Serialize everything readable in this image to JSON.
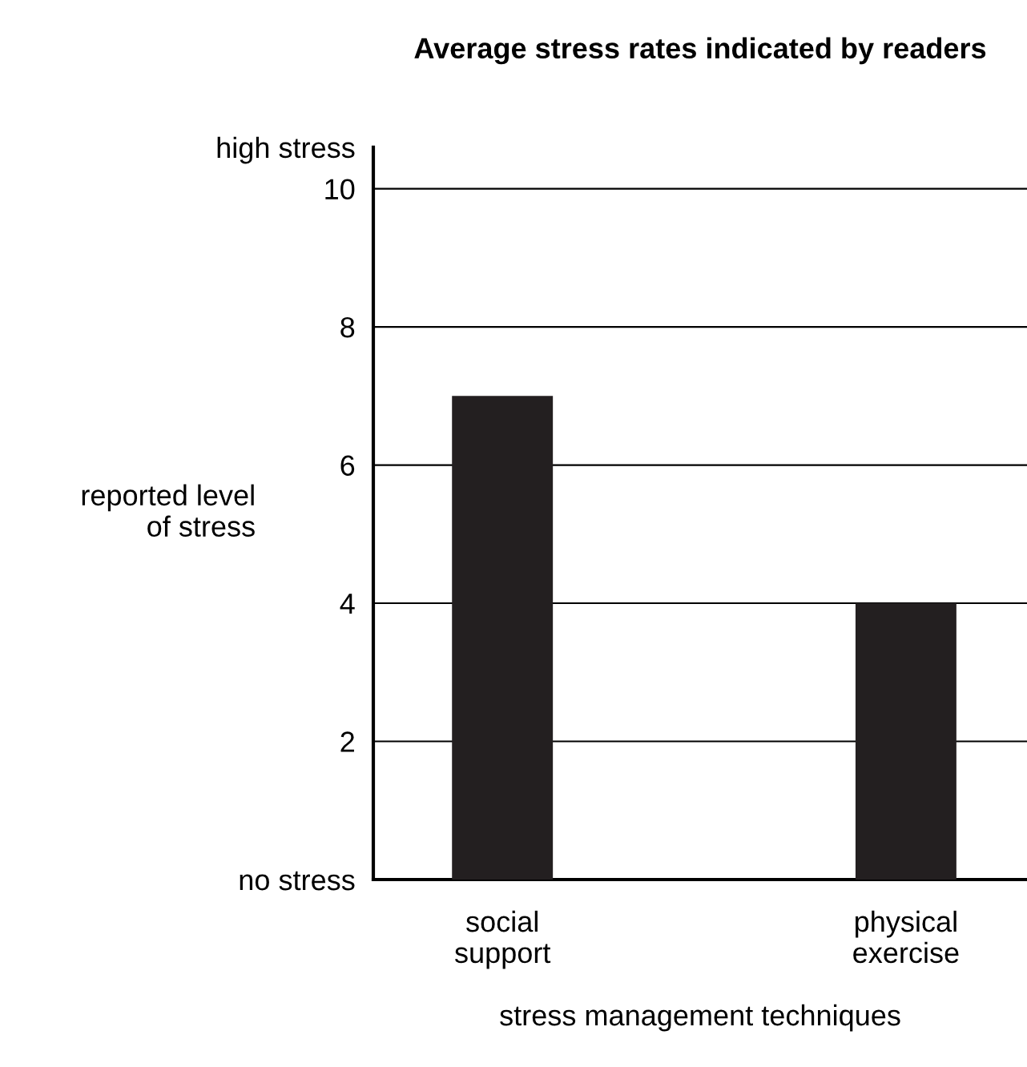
{
  "chart_data": {
    "type": "bar",
    "title": "Average stress rates indicated by readers",
    "xlabel": "stress management techniques",
    "ylabel": "reported level\nof stress",
    "categories": [
      "social\nsupport",
      "physical\nexercise"
    ],
    "values": [
      7,
      4
    ],
    "color": "#231f20",
    "ylim": [
      0,
      10.6
    ],
    "yticks": [
      {
        "value": 0,
        "label": "no stress"
      },
      2,
      4,
      6,
      8,
      10,
      {
        "value": 10.6,
        "label": "high stress"
      }
    ],
    "grid": "y"
  }
}
